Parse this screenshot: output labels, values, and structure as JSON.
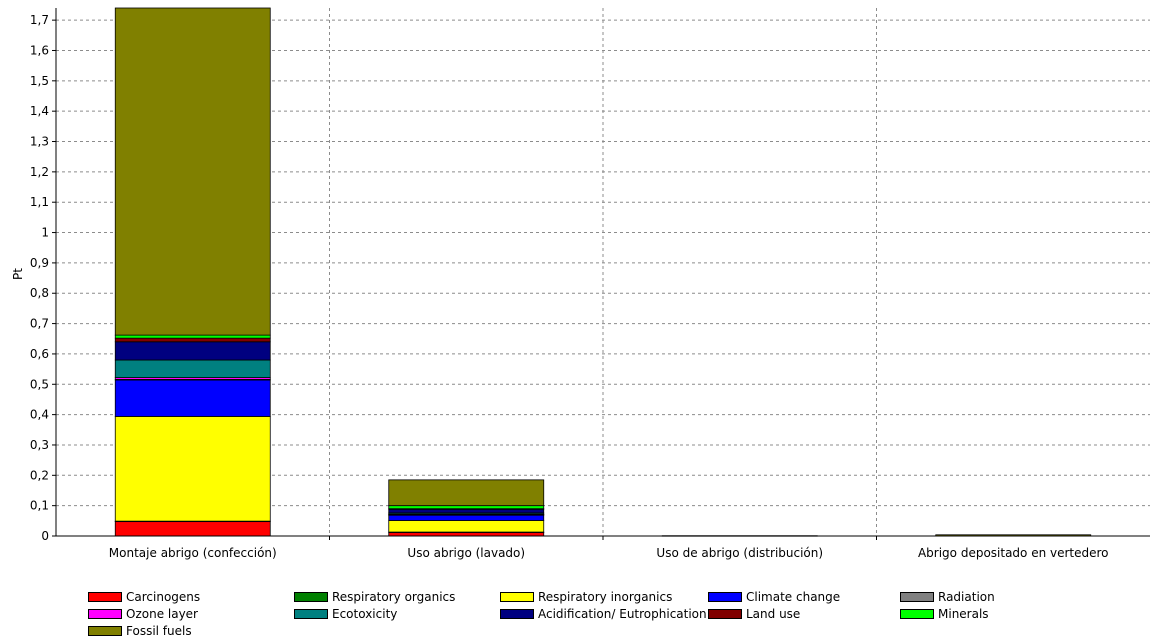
{
  "chart_data": {
    "type": "bar",
    "stacked": true,
    "ylabel": "Pt",
    "xlabel": "",
    "title": "",
    "ylim": [
      0,
      1.74
    ],
    "grid": true,
    "legend_position": "bottom",
    "yticks": [
      "0",
      "0,1",
      "0,2",
      "0,3",
      "0,4",
      "0,5",
      "0,6",
      "0,7",
      "0,8",
      "0,9",
      "1",
      "1,1",
      "1,2",
      "1,3",
      "1,4",
      "1,5",
      "1,6",
      "1,7"
    ],
    "categories": [
      "Montaje abrigo (confección)",
      "Uso abrigo (lavado)",
      "Uso de abrigo (distribución)",
      "Abrigo depositado en vertedero"
    ],
    "series": [
      {
        "name": "Carcinogens",
        "color": "#ff0000",
        "values": [
          0.048,
          0.012,
          0.0,
          0.0
        ]
      },
      {
        "name": "Respiratory organics",
        "color": "#008000",
        "values": [
          0.001,
          0.001,
          0.0,
          0.0
        ]
      },
      {
        "name": "Respiratory inorganics",
        "color": "#ffff00",
        "values": [
          0.345,
          0.038,
          0.0,
          0.0
        ]
      },
      {
        "name": "Climate change",
        "color": "#0000ff",
        "values": [
          0.12,
          0.018,
          0.0,
          0.0
        ]
      },
      {
        "name": "Radiation",
        "color": "#808080",
        "values": [
          0.002,
          0.001,
          0.0,
          0.0
        ]
      },
      {
        "name": "Ozone layer",
        "color": "#ff00ff",
        "values": [
          0.006,
          0.002,
          0.0,
          0.0
        ]
      },
      {
        "name": "Ecotoxicity",
        "color": "#008080",
        "values": [
          0.058,
          0.004,
          0.0,
          0.0
        ]
      },
      {
        "name": "Acidification/ Eutrophication",
        "color": "#000080",
        "values": [
          0.06,
          0.012,
          0.0,
          0.0
        ]
      },
      {
        "name": "Land use",
        "color": "#800000",
        "values": [
          0.012,
          0.002,
          0.0,
          0.0
        ]
      },
      {
        "name": "Minerals",
        "color": "#00ff00",
        "values": [
          0.01,
          0.01,
          0.0,
          0.0
        ]
      },
      {
        "name": "Fossil fuels",
        "color": "#808000",
        "values": [
          1.078,
          0.085,
          0.001,
          0.004
        ]
      }
    ]
  }
}
